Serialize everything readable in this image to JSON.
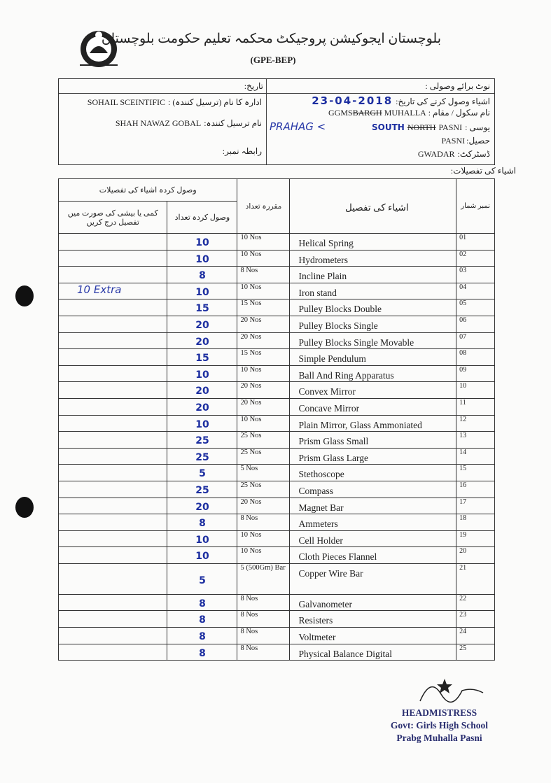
{
  "header": {
    "title_urdu": "بلوچستان ایجوکیشن پروجیکٹ محکمہ تعلیم حکومت بلوچستان",
    "subtitle": "(GPE-BEP)"
  },
  "info": {
    "date_label": "تاریخ:",
    "note_label": "نوٹ برائے وصولی :",
    "org_label": "ادارہ کا نام (ترسیل کنندہ) :",
    "org_value": "SOHAIL  SCEINTIFIC",
    "sender_label": "نام ترسیل کنندہ:",
    "sender_value": "SHAH NAWAZ GOBAL",
    "contact_label": "رابطہ نمبر:",
    "receipt_date_label": "اشیاء وصول کرنے کی تاریخ:",
    "receipt_date_value": "23-04-2018",
    "school_label": "نام سکول / مقام :",
    "school_value": "GGMS",
    "school_struck": "BARGH",
    "school_value2": "MUHALLA",
    "uc_label": "یوسی :",
    "uc_value": "PASNI",
    "uc_struck": "NORTH",
    "uc_hand": "SOUTH",
    "tehsil_label": "حصیل:",
    "tehsil_value": "PASNI",
    "district_label": "ڈسٹرکٹ:",
    "district_value": "GWADAR",
    "hand_note": "PRAHAG <"
  },
  "details_label": "اشیاء کی تفصیلات:",
  "table": {
    "headers": {
      "received_group": "وصول کردہ اشیاء کی تفصیلات",
      "remarks": "کمی یا بیشی کی صورت میں تفصیل درج کریں",
      "received_qty": "وصول کردہ تعداد",
      "fixed_qty": "مقررہ تعداد",
      "item": "اشیاء کی تفصیل",
      "serial": "نمبر شمار"
    },
    "rows": [
      {
        "sn": "01",
        "item": "Helical Spring",
        "qty": "10 Nos",
        "rec": "10",
        "rem": ""
      },
      {
        "sn": "02",
        "item": "Hydrometers",
        "qty": "10 Nos",
        "rec": "10",
        "rem": ""
      },
      {
        "sn": "03",
        "item": "Incline Plain",
        "qty": "8 Nos",
        "rec": "8",
        "rem": ""
      },
      {
        "sn": "04",
        "item": "Iron stand",
        "qty": "10 Nos",
        "rec": "10",
        "rem": "10 Extra"
      },
      {
        "sn": "05",
        "item": "Pulley Blocks Double",
        "qty": "15 Nos",
        "rec": "15",
        "rem": ""
      },
      {
        "sn": "06",
        "item": "Pulley Blocks Single",
        "qty": "20 Nos",
        "rec": "20",
        "rem": ""
      },
      {
        "sn": "07",
        "item": "Pulley Blocks Single Movable",
        "qty": "20 Nos",
        "rec": "20",
        "rem": ""
      },
      {
        "sn": "08",
        "item": "Simple Pendulum",
        "qty": "15 Nos",
        "rec": "15",
        "rem": ""
      },
      {
        "sn": "09",
        "item": "Ball And Ring Apparatus",
        "qty": "10 Nos",
        "rec": "10",
        "rem": ""
      },
      {
        "sn": "10",
        "item": "Convex Mirror",
        "qty": "20 Nos",
        "rec": "20",
        "rem": ""
      },
      {
        "sn": "11",
        "item": "Concave Mirror",
        "qty": "20 Nos",
        "rec": "20",
        "rem": ""
      },
      {
        "sn": "12",
        "item": "Plain Mirror, Glass Ammoniated",
        "qty": "10 Nos",
        "rec": "10",
        "rem": ""
      },
      {
        "sn": "13",
        "item": "Prism Glass Small",
        "qty": "25 Nos",
        "rec": "25",
        "rem": ""
      },
      {
        "sn": "14",
        "item": "Prism Glass Large",
        "qty": "25 Nos",
        "rec": "25",
        "rem": ""
      },
      {
        "sn": "15",
        "item": "Stethoscope",
        "qty": "5 Nos",
        "rec": "5",
        "rem": ""
      },
      {
        "sn": "16",
        "item": "Compass",
        "qty": "25 Nos",
        "rec": "25",
        "rem": ""
      },
      {
        "sn": "17",
        "item": "Magnet Bar",
        "qty": "20 Nos",
        "rec": "20",
        "rem": ""
      },
      {
        "sn": "18",
        "item": "Ammeters",
        "qty": "8 Nos",
        "rec": "8",
        "rem": ""
      },
      {
        "sn": "19",
        "item": "Cell Holder",
        "qty": "10 Nos",
        "rec": "10",
        "rem": ""
      },
      {
        "sn": "20",
        "item": "Cloth Pieces Flannel",
        "qty": "10 Nos",
        "rec": "10",
        "rem": ""
      },
      {
        "sn": "21",
        "item": "Copper Wire Bar",
        "qty": "5 (500Gm) Bar",
        "rec": "5",
        "rem": ""
      },
      {
        "sn": "22",
        "item": "Galvanometer",
        "qty": "8 Nos",
        "rec": "8",
        "rem": ""
      },
      {
        "sn": "23",
        "item": "Resisters",
        "qty": "8 Nos",
        "rec": "8",
        "rem": ""
      },
      {
        "sn": "24",
        "item": "Voltmeter",
        "qty": "8 Nos",
        "rec": "8",
        "rem": ""
      },
      {
        "sn": "25",
        "item": "Physical Balance Digital",
        "qty": "8 Nos",
        "rec": "8",
        "rem": ""
      }
    ]
  },
  "stamp": {
    "line1": "HEADMISTRESS",
    "line2": "Govt: Girls High School",
    "line3": "Prabg Muhalla Pasni"
  }
}
